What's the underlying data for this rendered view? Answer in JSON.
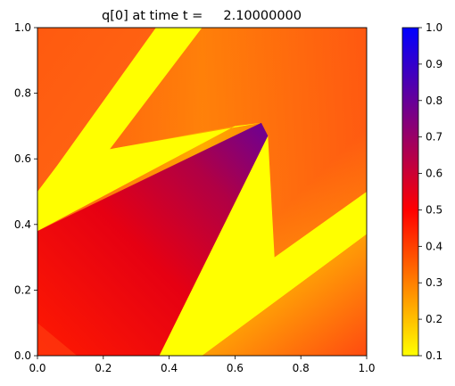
{
  "chart_data": {
    "type": "heatmap",
    "title": "q[0] at time t =     2.10000000",
    "xlabel": "",
    "ylabel": "",
    "xlim": [
      0,
      1
    ],
    "ylim": [
      0,
      1
    ],
    "x_ticks": [
      "0.0",
      "0.2",
      "0.4",
      "0.6",
      "0.8",
      "1.0"
    ],
    "y_ticks": [
      "0.0",
      "0.2",
      "0.4",
      "0.6",
      "0.8",
      "1.0"
    ],
    "grid": false,
    "colorbar": {
      "range": [
        0.1,
        1.0
      ],
      "ticks": [
        "0.1",
        "0.2",
        "0.3",
        "0.4",
        "0.5",
        "0.6",
        "0.7",
        "0.8",
        "0.9",
        "1.0"
      ],
      "colors": [
        "#ffff00",
        "#ff0000",
        "#0000ff"
      ]
    },
    "regions": [
      {
        "name": "central wedge",
        "value_range": [
          0.5,
          0.75
        ],
        "vertices": [
          [
            0.37,
            0.0
          ],
          [
            0.0,
            0.0
          ],
          [
            0.0,
            0.38
          ],
          [
            0.68,
            0.71
          ],
          [
            0.7,
            0.67
          ]
        ]
      },
      {
        "name": "upper-left band",
        "value": 0.1
      },
      {
        "name": "lower-right band",
        "value": 0.1
      },
      {
        "name": "background",
        "value_range": [
          0.25,
          0.45
        ]
      }
    ]
  }
}
